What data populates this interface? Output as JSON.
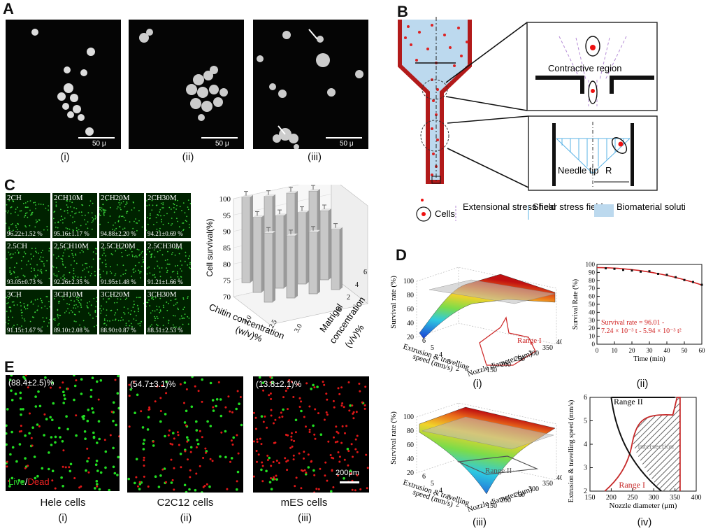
{
  "panelA": {
    "label": "A",
    "images": [
      {
        "scale": "50 μ",
        "caption": "(i)"
      },
      {
        "scale": "50 μ",
        "caption": "(ii)"
      },
      {
        "scale": "50 μ",
        "caption": "(iii)"
      }
    ]
  },
  "panelB": {
    "label": "B",
    "contractive": "Contractive region",
    "needle_tip": "Needle tip",
    "radius": "R",
    "legend": {
      "cells": "Cells",
      "extensional": "Extensional stress field",
      "shear": "Shear stress field",
      "biomaterial": "Biomaterial solution"
    }
  },
  "panelC": {
    "label": "C",
    "tiles": [
      {
        "name": "2CH",
        "value": "96.22±1.52 %"
      },
      {
        "name": "2CH10M",
        "value": "95.16±1.17 %"
      },
      {
        "name": "2CH20M",
        "value": "94.88±2.20 %"
      },
      {
        "name": "2CH30M",
        "value": "94.21±0.69 %"
      },
      {
        "name": "2.5CH",
        "value": "93.05±0.73 %"
      },
      {
        "name": "2.5CH10M",
        "value": "92.26±2.35 %"
      },
      {
        "name": "2.5CH20M",
        "value": "91.95±1.48 %"
      },
      {
        "name": "2.5CH30M",
        "value": "91.21±1.66 %"
      },
      {
        "name": "3CH",
        "value": "91.15±1.67 %"
      },
      {
        "name": "3CH10M",
        "value": "89.10±2.08 %"
      },
      {
        "name": "3CH20M",
        "value": "88.90±0.87 %"
      },
      {
        "name": "3CH30M",
        "value": "88.51±2.53 %"
      }
    ]
  },
  "panelD": {
    "label": "D",
    "captions": [
      "(i)",
      "(ii)",
      "(iii)",
      "(iv)"
    ],
    "equation_line1": "Survival rate = 96.01 -",
    "equation_line2": "7.24 × 10⁻³ t - 5.94 × 10⁻³ t²",
    "range1": "Range I",
    "range2": "Range II",
    "intersection": "Intersection"
  },
  "panelE": {
    "label": "E",
    "images": [
      {
        "pct": "(88.4±2.5)%",
        "name": "Hele cells",
        "caption": "(i)"
      },
      {
        "pct": "(54.7±3.1)%",
        "name": "C2C12 cells",
        "caption": "(ii)"
      },
      {
        "pct": "(13.8±2.1)%",
        "name": "mES cells",
        "caption": "(iii)"
      }
    ],
    "live": "Live",
    "slash": "/",
    "dead": "Dead",
    "scale": "200μm"
  },
  "chart_data": [
    {
      "type": "bar",
      "panel": "C-chart",
      "categories_x": [
        "2.0",
        "2.5",
        "3.0"
      ],
      "categories_z": [
        "0",
        "2",
        "4",
        "6"
      ],
      "xlabel": "Chitin concentration (w/v)%",
      "zlabel": "Matrigel concentration (v/v)%",
      "ylabel": "Cell survival(%)",
      "ylim": [
        70,
        100
      ],
      "yticks": [
        "70",
        "75",
        "80",
        "85",
        "90",
        "95",
        "100"
      ],
      "values": [
        [
          96.22,
          95.16,
          94.88,
          94.21
        ],
        [
          93.05,
          92.26,
          91.95,
          91.21
        ],
        [
          91.15,
          89.1,
          88.9,
          88.51
        ]
      ]
    },
    {
      "type": "scatter",
      "panel": "D-ii",
      "xlabel": "Time (min)",
      "ylabel": "Survival Rate (%)",
      "xlim": [
        0,
        60
      ],
      "ylim": [
        0,
        100
      ],
      "xticks": [
        "0",
        "10",
        "20",
        "30",
        "40",
        "50",
        "60"
      ],
      "yticks": [
        "0",
        "10",
        "20",
        "30",
        "40",
        "50",
        "60",
        "70",
        "80",
        "90",
        "100"
      ],
      "x": [
        5,
        10,
        15,
        20,
        25,
        30,
        35,
        40,
        45,
        50,
        55,
        60
      ],
      "y": [
        95.2,
        94.5,
        93.2,
        92.4,
        91.0,
        91.5,
        88.2,
        87.0,
        84.0,
        80.5,
        78.0,
        74.5
      ],
      "fit": {
        "intercept": 96.01,
        "b1": -0.00724,
        "b2": -0.00594
      }
    },
    {
      "type": "area",
      "panel": "D-iv",
      "xlabel": "Nozzle diameter (μm)",
      "ylabel": "Extrusion & travelling speed (mm/s)",
      "xlim": [
        150,
        400
      ],
      "ylim": [
        2,
        6
      ],
      "xticks": [
        "150",
        "200",
        "250",
        "300",
        "350",
        "400"
      ],
      "yticks": [
        "2",
        "3",
        "4",
        "5",
        "6"
      ]
    },
    {
      "type": "heatmap",
      "panel": "D-i / D-iii",
      "xlabel": "Nozzle diameter (μm)",
      "ylabel": "Extrusion & travelling speed (mm/s)",
      "zlabel": "Survival rate (%)",
      "xticks": [
        "150",
        "200",
        "250",
        "300",
        "350",
        "400"
      ],
      "yticks": [
        "2",
        "3",
        "4",
        "5",
        "6"
      ],
      "zticks": [
        "20",
        "40",
        "60",
        "80",
        "100"
      ]
    }
  ]
}
